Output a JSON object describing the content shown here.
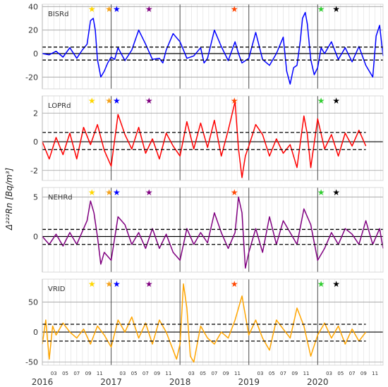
{
  "y_axis_label": "Δ²²²Rn [Bq/m³]",
  "x_year_labels": [
    "2016",
    "2017",
    "2018",
    "2019",
    "2020"
  ],
  "x_month_labels": [
    "03",
    "05",
    "07",
    "09",
    "11",
    "03",
    "05",
    "07",
    "09",
    "11",
    "03",
    "05",
    "07",
    "09",
    "11",
    "03",
    "05",
    "07",
    "09",
    "11",
    "03",
    "05",
    "07",
    "09",
    "11"
  ],
  "event_star_colors": [
    "#ffd700",
    "#f4a11a",
    "#0000ff",
    "#800080",
    "#ff4500",
    "#32cd32",
    "#000000"
  ],
  "event_star_dates": [
    2016.72,
    2016.97,
    2017.08,
    2017.55,
    2018.79,
    2020.05,
    2020.27
  ],
  "chart_data": [
    {
      "type": "line",
      "title": "BISRd",
      "color": "#0000ff",
      "xlim": [
        2016.0,
        2020.95
      ],
      "ylim": [
        -30,
        42
      ],
      "yticks": [
        -20,
        0,
        20,
        40
      ],
      "threshold_band": [
        -5.5,
        5.5
      ],
      "x": [
        2016.0,
        2016.1,
        2016.2,
        2016.3,
        2016.4,
        2016.5,
        2016.58,
        2016.65,
        2016.7,
        2016.74,
        2016.77,
        2016.8,
        2016.85,
        2016.9,
        2016.95,
        2017.0,
        2017.05,
        2017.1,
        2017.2,
        2017.3,
        2017.4,
        2017.5,
        2017.6,
        2017.7,
        2017.75,
        2017.8,
        2017.9,
        2018.0,
        2018.1,
        2018.2,
        2018.3,
        2018.35,
        2018.4,
        2018.5,
        2018.6,
        2018.7,
        2018.8,
        2018.85,
        2018.9,
        2019.0,
        2019.1,
        2019.2,
        2019.3,
        2019.4,
        2019.5,
        2019.55,
        2019.6,
        2019.65,
        2019.7,
        2019.75,
        2019.78,
        2019.82,
        2019.85,
        2019.9,
        2019.95,
        2020.0,
        2020.05,
        2020.1,
        2020.2,
        2020.3,
        2020.4,
        2020.5,
        2020.6,
        2020.7,
        2020.75,
        2020.8,
        2020.85,
        2020.9,
        2020.95
      ],
      "values": [
        0,
        -1,
        2,
        -3,
        5,
        -4,
        3,
        8,
        28,
        30,
        20,
        -5,
        -20,
        -15,
        -8,
        -3,
        -5,
        5,
        -6,
        3,
        20,
        8,
        -5,
        -4,
        -8,
        3,
        17,
        10,
        -4,
        -2,
        5,
        -8,
        -4,
        20,
        6,
        -6,
        10,
        0,
        -8,
        -4,
        18,
        -5,
        -10,
        0,
        14,
        -15,
        -26,
        -12,
        -10,
        12,
        30,
        35,
        25,
        -5,
        -18,
        -12,
        5,
        0,
        10,
        -5,
        5,
        -7,
        6,
        -10,
        -15,
        -20,
        15,
        24,
        -2
      ]
    },
    {
      "type": "line",
      "title": "LOPRd",
      "color": "#ff0000",
      "xlim": [
        2016.0,
        2020.95
      ],
      "ylim": [
        -2.7,
        3.2
      ],
      "yticks": [
        -2,
        0,
        2
      ],
      "threshold_band": [
        -0.55,
        0.65
      ],
      "x": [
        2016.0,
        2016.1,
        2016.2,
        2016.3,
        2016.4,
        2016.5,
        2016.6,
        2016.7,
        2016.8,
        2016.9,
        2017.0,
        2017.1,
        2017.2,
        2017.3,
        2017.4,
        2017.5,
        2017.6,
        2017.7,
        2017.8,
        2017.9,
        2018.0,
        2018.1,
        2018.2,
        2018.3,
        2018.4,
        2018.5,
        2018.6,
        2018.7,
        2018.8,
        2018.85,
        2018.9,
        2018.95,
        2019.0,
        2019.1,
        2019.2,
        2019.3,
        2019.4,
        2019.5,
        2019.6,
        2019.7,
        2019.8,
        2019.85,
        2019.9,
        2020.0,
        2020.1,
        2020.2,
        2020.3,
        2020.4,
        2020.5,
        2020.6,
        2020.7
      ],
      "values": [
        0,
        -1.2,
        0.3,
        -0.9,
        0.6,
        -1.2,
        1,
        -0.2,
        1.2,
        -0.6,
        -1.7,
        1.9,
        0.5,
        -0.5,
        1,
        -0.8,
        0.2,
        -1.2,
        0.6,
        -0.3,
        -1,
        1.4,
        -0.5,
        1.3,
        -0.4,
        1.5,
        -1,
        0.8,
        2.8,
        -0.5,
        -2.5,
        -1,
        -0.3,
        1.2,
        0.5,
        -1,
        0.2,
        -0.8,
        -0.2,
        -1.8,
        1.8,
        0.5,
        -1.8,
        1.6,
        -0.5,
        0.5,
        -1,
        0.6,
        -0.3,
        0.8,
        -0.3
      ]
    },
    {
      "type": "line",
      "title": "NEHRd",
      "color": "#800080",
      "xlim": [
        2016.0,
        2020.95
      ],
      "ylim": [
        -4.5,
        6.2
      ],
      "yticks": [
        0,
        5
      ],
      "threshold_band": [
        -1.0,
        0.9
      ],
      "x": [
        2016.0,
        2016.1,
        2016.2,
        2016.3,
        2016.4,
        2016.5,
        2016.6,
        2016.65,
        2016.7,
        2016.75,
        2016.8,
        2016.85,
        2016.9,
        2017.0,
        2017.1,
        2017.2,
        2017.3,
        2017.4,
        2017.5,
        2017.6,
        2017.7,
        2017.8,
        2017.9,
        2018.0,
        2018.1,
        2018.2,
        2018.3,
        2018.4,
        2018.5,
        2018.6,
        2018.7,
        2018.8,
        2018.85,
        2018.9,
        2018.95,
        2019.0,
        2019.1,
        2019.2,
        2019.3,
        2019.4,
        2019.5,
        2019.6,
        2019.7,
        2019.8,
        2019.9,
        2020.0,
        2020.1,
        2020.2,
        2020.3,
        2020.4,
        2020.5,
        2020.6,
        2020.7,
        2020.8,
        2020.9,
        2020.95
      ],
      "values": [
        0,
        -1,
        0.3,
        -1.2,
        0.5,
        -1,
        1,
        2,
        4.5,
        3,
        0,
        -3.5,
        -2,
        -3,
        2.5,
        1.5,
        -1,
        0.5,
        -1.5,
        1,
        -1.5,
        0.3,
        -2,
        -3,
        1,
        -1,
        0.5,
        -0.8,
        3,
        0.5,
        -1.5,
        0.5,
        5,
        3,
        -4,
        -2,
        1,
        -2,
        2.5,
        -1,
        2,
        0.5,
        -1,
        3.5,
        1.5,
        -3,
        -1.5,
        0.5,
        -1,
        1,
        0.3,
        -1,
        2,
        -1,
        1,
        -1.5
      ]
    },
    {
      "type": "line",
      "title": "VRID",
      "color": "#ffa500",
      "xlim": [
        2016.0,
        2020.95
      ],
      "ylim": [
        -55,
        88
      ],
      "yticks": [
        -50,
        0,
        50
      ],
      "threshold_band": [
        -15,
        13
      ],
      "x": [
        2016.0,
        2016.05,
        2016.1,
        2016.15,
        2016.2,
        2016.3,
        2016.4,
        2016.5,
        2016.6,
        2016.7,
        2016.8,
        2016.9,
        2017.0,
        2017.1,
        2017.2,
        2017.3,
        2017.4,
        2017.5,
        2017.6,
        2017.7,
        2017.8,
        2017.9,
        2017.95,
        2018.0,
        2018.05,
        2018.1,
        2018.15,
        2018.2,
        2018.3,
        2018.4,
        2018.5,
        2018.6,
        2018.7,
        2018.8,
        2018.85,
        2018.9,
        2019.0,
        2019.1,
        2019.2,
        2019.3,
        2019.4,
        2019.5,
        2019.6,
        2019.7,
        2019.8,
        2019.9,
        2020.0,
        2020.1,
        2020.2,
        2020.3,
        2020.4,
        2020.5,
        2020.6,
        2020.7
      ],
      "values": [
        -20,
        20,
        -45,
        10,
        -5,
        15,
        0,
        -10,
        5,
        -20,
        10,
        -5,
        -25,
        20,
        0,
        25,
        -10,
        15,
        -20,
        20,
        0,
        -30,
        -45,
        -20,
        80,
        40,
        -40,
        -50,
        10,
        -10,
        -20,
        0,
        -10,
        20,
        40,
        60,
        -5,
        20,
        -10,
        -30,
        20,
        5,
        -10,
        40,
        10,
        -40,
        -5,
        15,
        -10,
        10,
        -20,
        5,
        -15,
        0
      ]
    }
  ]
}
